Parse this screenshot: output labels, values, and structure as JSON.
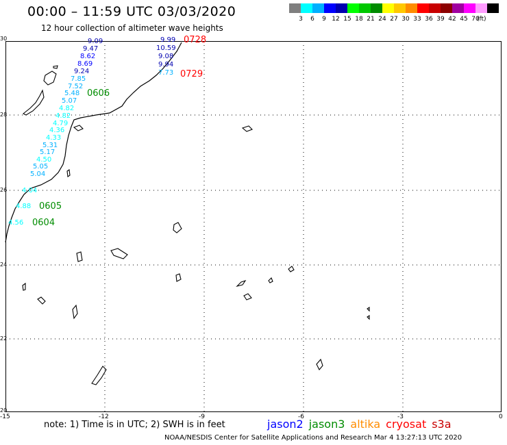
{
  "header": {
    "title": "00:00 – 11:59 UTC 03/03/2020",
    "subtitle": "12 hour collection of altimeter wave heights"
  },
  "color_scale": {
    "unit": "(ft)",
    "segments": [
      {
        "color": "#7f7f7f",
        "label": ""
      },
      {
        "color": "#00ffff",
        "label": "3"
      },
      {
        "color": "#00b0ff",
        "label": "6"
      },
      {
        "color": "#0000ff",
        "label": "9"
      },
      {
        "color": "#0000b0",
        "label": "12"
      },
      {
        "color": "#00ff00",
        "label": "15"
      },
      {
        "color": "#00c800",
        "label": "18"
      },
      {
        "color": "#008c00",
        "label": "21"
      },
      {
        "color": "#ffff00",
        "label": "24"
      },
      {
        "color": "#ffc800",
        "label": "27"
      },
      {
        "color": "#ff8c00",
        "label": "30"
      },
      {
        "color": "#ff0000",
        "label": "33"
      },
      {
        "color": "#c80000",
        "label": "36"
      },
      {
        "color": "#8c0000",
        "label": "39"
      },
      {
        "color": "#a000a0",
        "label": "42"
      },
      {
        "color": "#ff00ff",
        "label": "45"
      },
      {
        "color": "#ff9cff",
        "label": "70"
      },
      {
        "color": "#000000",
        "label": ""
      }
    ]
  },
  "axes": {
    "y_ticks": [
      "30",
      "28",
      "26",
      "24",
      "22",
      "20"
    ],
    "x_ticks": [
      "-15",
      "-12",
      "-9",
      "-6",
      "-3",
      "0"
    ]
  },
  "passes": [
    {
      "label": "0728",
      "color": "#ff0000"
    },
    {
      "label": "0729",
      "color": "#ff0000"
    },
    {
      "label": "0606",
      "color": "#008c00"
    },
    {
      "label": "0605",
      "color": "#008c00"
    },
    {
      "label": "0604",
      "color": "#008c00"
    }
  ],
  "wave_heights": {
    "track_0728": [
      {
        "value": "9.99",
        "color": "#0000b0"
      },
      {
        "value": "10.59",
        "color": "#0000b0"
      },
      {
        "value": "9.08",
        "color": "#0000b0"
      },
      {
        "value": "9.94",
        "color": "#0000b0"
      },
      {
        "value": "7.73",
        "color": "#00b0ff"
      }
    ],
    "track_0606": [
      {
        "value": "9.09",
        "color": "#0000b0"
      },
      {
        "value": "9.47",
        "color": "#0000b0"
      },
      {
        "value": "8.62",
        "color": "#0000ff"
      },
      {
        "value": "8.69",
        "color": "#0000ff"
      },
      {
        "value": "9.24",
        "color": "#0000b0"
      },
      {
        "value": "7.85",
        "color": "#00b0ff"
      },
      {
        "value": "7.52",
        "color": "#00b0ff"
      },
      {
        "value": "5.48",
        "color": "#00b0ff"
      },
      {
        "value": "5.07",
        "color": "#00b0ff"
      },
      {
        "value": "4.82",
        "color": "#00ffff"
      },
      {
        "value": "4.82",
        "color": "#00ffff"
      },
      {
        "value": "4.79",
        "color": "#00ffff"
      },
      {
        "value": "4.36",
        "color": "#00ffff"
      },
      {
        "value": "4.33",
        "color": "#00ffff"
      },
      {
        "value": "5.31",
        "color": "#00b0ff"
      },
      {
        "value": "5.17",
        "color": "#00b0ff"
      },
      {
        "value": "4.50",
        "color": "#00ffff"
      },
      {
        "value": "5.05",
        "color": "#00b0ff"
      },
      {
        "value": "5.04",
        "color": "#00b0ff"
      }
    ],
    "track_0605": [
      {
        "value": "4.04",
        "color": "#00ffff"
      },
      {
        "value": "4.88",
        "color": "#00ffff"
      }
    ],
    "track_0604": [
      {
        "value": "4.56",
        "color": "#00ffff"
      }
    ]
  },
  "footer": {
    "note": "note: 1) Time is in UTC; 2) SWH is in feet",
    "missions": [
      {
        "name": "jason2",
        "color": "#0000ff"
      },
      {
        "name": "jason3",
        "color": "#008c00"
      },
      {
        "name": "altika",
        "color": "#ff8c00"
      },
      {
        "name": "cryosat",
        "color": "#ff0000"
      },
      {
        "name": "s3a",
        "color": "#c80000"
      }
    ],
    "credit": "NOAA/NESDIS Center for Satellite Applications and Research    Mar  4 13:27:13 UTC 2020"
  }
}
